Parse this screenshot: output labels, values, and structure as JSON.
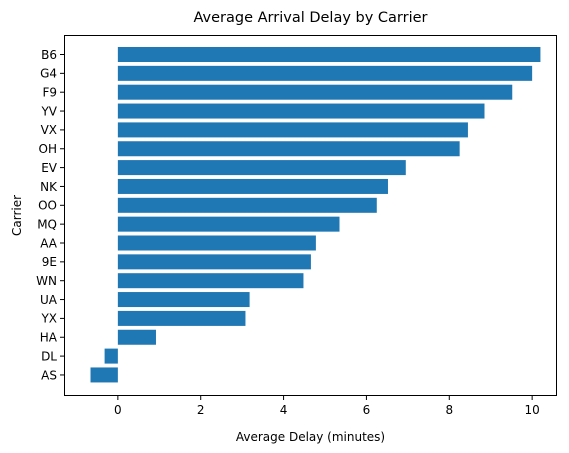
{
  "chart_data": {
    "type": "bar",
    "orientation": "horizontal",
    "title": "Average Arrival Delay by Carrier",
    "xlabel": "Average Delay (minutes)",
    "ylabel": "Carrier",
    "categories": [
      "B6",
      "G4",
      "F9",
      "YV",
      "VX",
      "OH",
      "EV",
      "NK",
      "OO",
      "MQ",
      "AA",
      "9E",
      "WN",
      "UA",
      "YX",
      "HA",
      "DL",
      "AS"
    ],
    "values": [
      10.2,
      10.0,
      9.52,
      8.85,
      8.45,
      8.25,
      6.95,
      6.52,
      6.25,
      5.35,
      4.78,
      4.66,
      4.48,
      3.18,
      3.08,
      0.92,
      -0.32,
      -0.66
    ],
    "xlim": [
      -1.3,
      10.6
    ],
    "xticks": [
      0,
      2,
      4,
      6,
      8,
      10
    ],
    "bar_color": "#1f77b4",
    "grid": false,
    "legend": "none"
  }
}
